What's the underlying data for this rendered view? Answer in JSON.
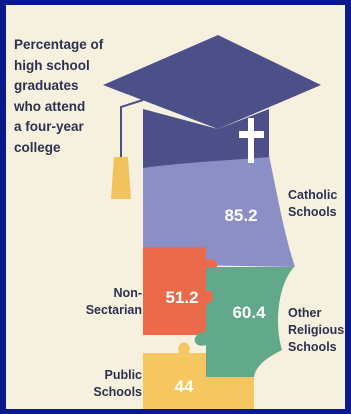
{
  "chart_data": {
    "type": "other",
    "title": "Percentage of\nhigh school\ngraduates\nwho attend\na four-year\ncollege",
    "categories": [
      "Catholic\nSchools",
      "Non-\nSectarian",
      "Other\nReligious\nSchools",
      "Public\nSchools"
    ],
    "values": [
      85.2,
      51.2,
      60.4,
      44
    ],
    "value_labels": [
      "85.2",
      "51.2",
      "60.4",
      "44"
    ],
    "colors": {
      "catholic": "#8c8fc6",
      "non_sectarian": "#ec6a4c",
      "other_religious": "#62a88a",
      "public": "#f6c660",
      "cap": "#4d5088",
      "tassel": "#f2c35d",
      "cross": "#ffffff",
      "background": "#f6f0df",
      "border": "#0a1a8c",
      "text": "#2e3150"
    },
    "icons": [
      "graduation-cap-icon",
      "cross-icon"
    ]
  }
}
